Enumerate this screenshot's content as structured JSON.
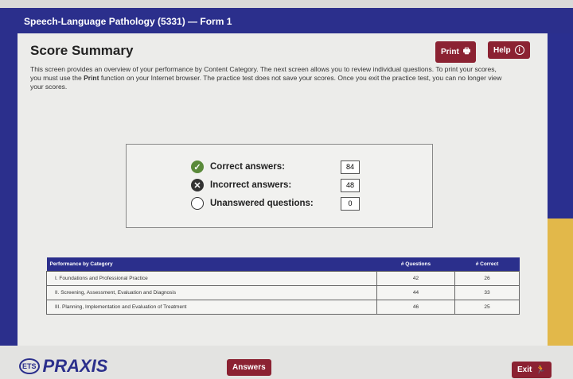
{
  "window": {
    "title": "Speech-Language Pathology (5331) — Form 1"
  },
  "toolbar": {
    "print_label": "Print",
    "help_label": "Help"
  },
  "page": {
    "title": "Score Summary",
    "desc_1": "This screen provides an overview of your performance by Content Category. The next screen allows you to review individual questions. To print your scores, you must use the ",
    "desc_bold": "Print",
    "desc_2": " function on your Internet browser. The practice test does not save your scores. Once you exit the practice test, you can no longer view your scores."
  },
  "summary": [
    {
      "label": "Correct answers:",
      "value": "84",
      "icon": "check-circle-icon",
      "color": "#5a8a3a"
    },
    {
      "label": "Incorrect answers:",
      "value": "48",
      "icon": "x-circle-icon",
      "color": "#333333"
    },
    {
      "label": "Unanswered questions:",
      "value": "0",
      "icon": "empty-circle-icon",
      "color": "#ffffff"
    }
  ],
  "table": {
    "headers": [
      "Performance by Category",
      "# Questions",
      "# Correct"
    ],
    "rows": [
      [
        "I. Foundations and Professional Practice",
        "42",
        "26"
      ],
      [
        "II. Screening, Assessment, Evaluation and Diagnosis",
        "44",
        "33"
      ],
      [
        "III. Planning, Implementation and Evaluation of Treatment",
        "46",
        "25"
      ]
    ]
  },
  "footer": {
    "logo_ets": "ETS",
    "logo_text": "PRAXIS",
    "answers_label": "Answers",
    "exit_label": "Exit"
  },
  "colors": {
    "brand_blue": "#2b2f8c",
    "button_red": "#8b2232",
    "accent_gold": "#e2b84a"
  }
}
